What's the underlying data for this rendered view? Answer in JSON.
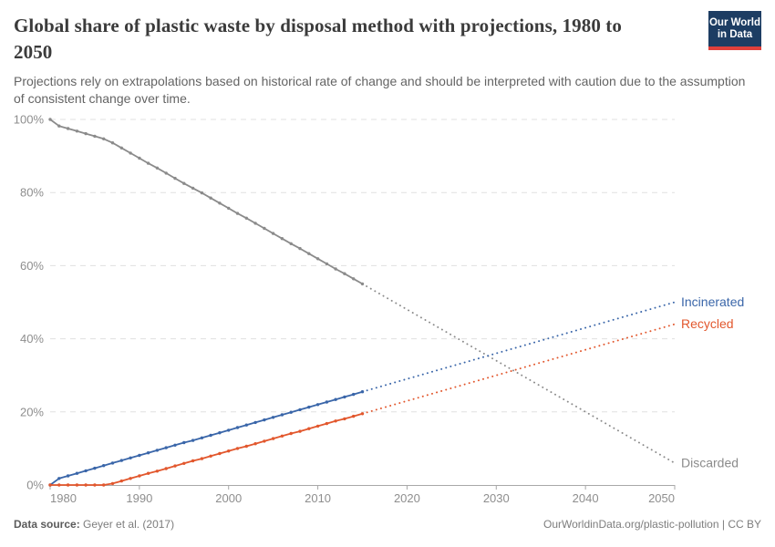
{
  "header": {
    "title": "Global share of plastic waste by disposal method with projections, 1980 to 2050",
    "subtitle": "Projections rely on extrapolations based on historical rate of change and should be interpreted with caution due to the assumption of consistent change over time.",
    "logo": {
      "line1": "Our World",
      "line2": "in Data",
      "bg_color": "#1d3d63",
      "accent_color": "#e0403b"
    }
  },
  "footer": {
    "source_label": "Data source:",
    "source_value": "Geyer et al. (2017)",
    "link_text": "OurWorldinData.org/plastic-pollution | CC BY"
  },
  "chart_data": {
    "type": "line",
    "title": "Global share of plastic waste by disposal method with projections, 1980 to 2050",
    "xlabel": "",
    "ylabel": "",
    "xlim": [
      1980,
      2050
    ],
    "ylim": [
      0,
      100
    ],
    "xticks": [
      1980,
      1990,
      2000,
      2010,
      2020,
      2030,
      2040,
      2050
    ],
    "yticks": [
      0,
      20,
      40,
      60,
      80,
      100
    ],
    "ytick_suffix": "%",
    "grid": "dashed-horizontal",
    "legend_position": "right-of-line-end",
    "historical_years": [
      1980,
      1981,
      1982,
      1983,
      1984,
      1985,
      1986,
      1987,
      1988,
      1989,
      1990,
      1991,
      1992,
      1993,
      1994,
      1995,
      1996,
      1997,
      1998,
      1999,
      2000,
      2001,
      2002,
      2003,
      2004,
      2005,
      2006,
      2007,
      2008,
      2009,
      2010,
      2011,
      2012,
      2013,
      2014,
      2015
    ],
    "series": [
      {
        "name": "Discarded",
        "color": "#8b8b8b",
        "values": [
          100,
          98.2,
          97.5,
          96.8,
          96.1,
          95.4,
          94.7,
          93.6,
          92.2,
          90.8,
          89.4,
          88.0,
          86.7,
          85.3,
          83.9,
          82.5,
          81.2,
          79.9,
          78.5,
          77.1,
          75.7,
          74.3,
          73.0,
          71.6,
          70.2,
          68.8,
          67.4,
          66.0,
          64.7,
          63.3,
          61.9,
          60.5,
          59.1,
          57.8,
          56.4,
          55.0
        ],
        "projection": {
          "years": [
            2015,
            2050
          ],
          "values": [
            55.0,
            6.0
          ]
        }
      },
      {
        "name": "Incinerated",
        "color": "#3a66a9",
        "values": [
          0,
          1.8,
          2.5,
          3.2,
          3.9,
          4.6,
          5.3,
          6.0,
          6.7,
          7.4,
          8.1,
          8.8,
          9.5,
          10.2,
          10.9,
          11.6,
          12.2,
          12.9,
          13.6,
          14.3,
          15.0,
          15.7,
          16.4,
          17.1,
          17.8,
          18.5,
          19.2,
          19.9,
          20.6,
          21.3,
          22.0,
          22.7,
          23.4,
          24.1,
          24.8,
          25.5
        ],
        "projection": {
          "years": [
            2015,
            2050
          ],
          "values": [
            25.5,
            50.0
          ]
        }
      },
      {
        "name": "Recycled",
        "color": "#e2572d",
        "values": [
          0,
          0,
          0,
          0,
          0,
          0,
          0,
          0.4,
          1.1,
          1.8,
          2.5,
          3.2,
          3.8,
          4.5,
          5.2,
          5.9,
          6.6,
          7.2,
          7.9,
          8.6,
          9.3,
          10.0,
          10.6,
          11.3,
          12.0,
          12.7,
          13.4,
          14.1,
          14.7,
          15.4,
          16.1,
          16.8,
          17.5,
          18.1,
          18.8,
          19.5
        ],
        "projection": {
          "years": [
            2015,
            2050
          ],
          "values": [
            19.5,
            44.0
          ]
        }
      }
    ]
  }
}
